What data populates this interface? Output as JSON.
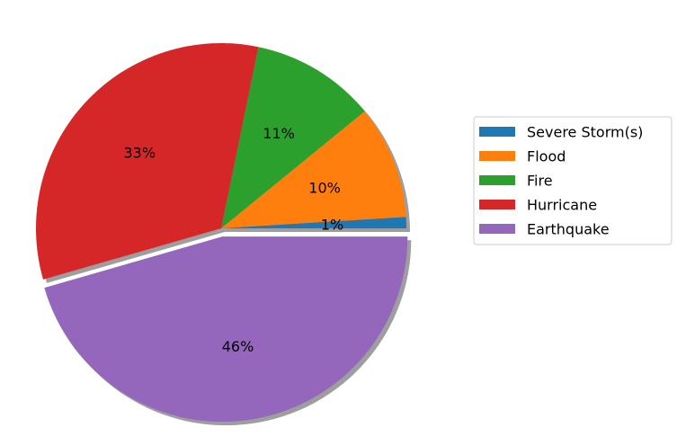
{
  "chart_data": {
    "type": "pie",
    "categories": [
      "Severe Storm(s)",
      "Flood",
      "Fire",
      "Hurricane",
      "Earthquake"
    ],
    "values": [
      1,
      10,
      11,
      33,
      46
    ],
    "value_labels": [
      "1%",
      "10%",
      "11%",
      "33%",
      "46%"
    ],
    "colors": [
      "#1f77b4",
      "#ff7f0e",
      "#2ca02c",
      "#d62728",
      "#9467bd"
    ],
    "exploded": [
      "Earthquake"
    ],
    "shadow": true,
    "legend": "right",
    "title": ""
  }
}
